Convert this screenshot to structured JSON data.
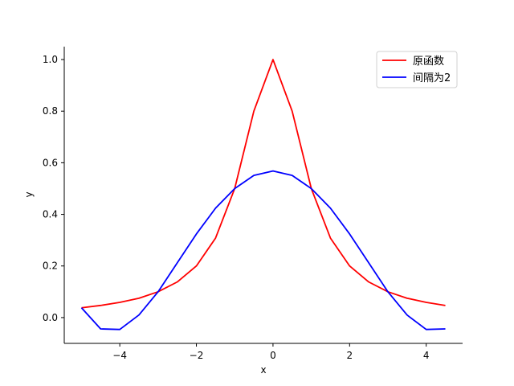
{
  "chart_data": {
    "type": "line",
    "title": "",
    "xlabel": "x",
    "ylabel": "y",
    "xlim": [
      -5.45,
      4.95
    ],
    "ylim": [
      -0.1,
      1.05
    ],
    "xticks": [
      -4,
      -2,
      0,
      2,
      4
    ],
    "xtick_labels": [
      "−4",
      "−2",
      "0",
      "2",
      "4"
    ],
    "yticks": [
      0.0,
      0.2,
      0.4,
      0.6,
      0.8,
      1.0
    ],
    "ytick_labels": [
      "0.0",
      "0.2",
      "0.4",
      "0.6",
      "0.8",
      "1.0"
    ],
    "grid": false,
    "legend_position": "top-right",
    "series": [
      {
        "name": "原函数",
        "color": "#ff0000",
        "x": [
          -5,
          -4.5,
          -4,
          -3.5,
          -3,
          -2.5,
          -2,
          -1.5,
          -1,
          -0.5,
          0,
          0.5,
          1,
          1.5,
          2,
          2.5,
          3,
          3.5,
          4,
          4.5
        ],
        "y": [
          0.038,
          0.047,
          0.059,
          0.075,
          0.1,
          0.138,
          0.2,
          0.308,
          0.5,
          0.8,
          1.0,
          0.8,
          0.5,
          0.308,
          0.2,
          0.138,
          0.1,
          0.075,
          0.059,
          0.047
        ]
      },
      {
        "name": "间隔为2",
        "color": "#0000ff",
        "x": [
          -5,
          -4.5,
          -4,
          -3.5,
          -3,
          -2.5,
          -2,
          -1.5,
          -1,
          -0.5,
          0,
          0.5,
          1,
          1.5,
          2,
          2.5,
          3,
          3.5,
          4,
          4.5
        ],
        "y": [
          0.038,
          -0.044,
          -0.046,
          0.01,
          0.1,
          0.212,
          0.324,
          0.424,
          0.5,
          0.551,
          0.568,
          0.551,
          0.5,
          0.424,
          0.324,
          0.212,
          0.1,
          0.01,
          -0.046,
          -0.044
        ]
      }
    ]
  }
}
